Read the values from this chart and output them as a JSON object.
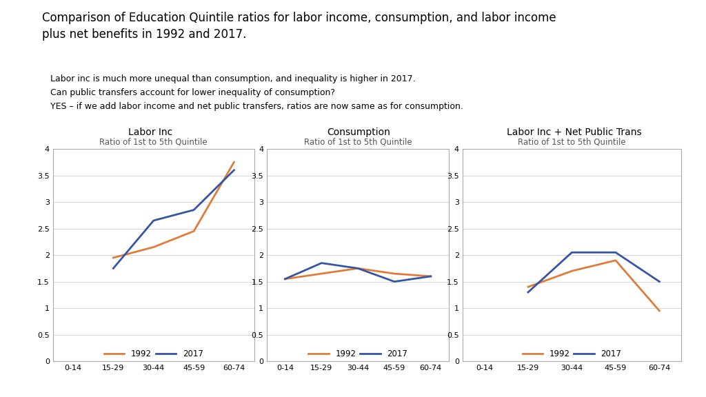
{
  "title": "Comparison of Education Quintile ratios for labor income, consumption, and labor income\nplus net benefits in 1992 and 2017.",
  "subtitle_lines": "Labor inc is much more unequal than consumption, and inequality is higher in 2017.\nCan public transfers account for lower inequality of consumption?\nYES – if we add labor income and net public transfers, ratios are now same as for consumption.",
  "subtitle_bg": "#dce6f1",
  "subtitle_border": "#aab8d0",
  "panel_titles": [
    "Labor Inc",
    "Consumption",
    "Labor Inc + Net Public Trans"
  ],
  "chart_subtitle": "Ratio of 1st to 5th Quintile",
  "x_labels": [
    "0-14",
    "15-29",
    "30-44",
    "45-59",
    "60-74"
  ],
  "ylim": [
    0,
    4
  ],
  "yticks": [
    0,
    0.5,
    1,
    1.5,
    2,
    2.5,
    3,
    3.5,
    4
  ],
  "ytick_labels": [
    "0",
    "0.5",
    "1",
    "1.5",
    "2",
    "2.5",
    "3",
    "3.5",
    "4"
  ],
  "color_1992": "#e07b39",
  "color_2017": "#3455a4",
  "legend_labels": [
    "1992",
    "2017"
  ],
  "panels": [
    {
      "name": "Labor Inc",
      "data_1992": [
        null,
        1.95,
        2.15,
        2.45,
        3.75
      ],
      "data_2017": [
        null,
        1.75,
        2.65,
        2.85,
        3.6
      ]
    },
    {
      "name": "Consumption",
      "data_1992": [
        1.55,
        1.65,
        1.75,
        1.65,
        1.6
      ],
      "data_2017": [
        1.55,
        1.85,
        1.75,
        1.5,
        1.6
      ]
    },
    {
      "name": "Labor Inc + Net Public Trans",
      "data_1992": [
        null,
        1.4,
        1.7,
        1.9,
        0.95
      ],
      "data_2017": [
        null,
        1.3,
        2.05,
        2.05,
        1.5
      ]
    }
  ]
}
